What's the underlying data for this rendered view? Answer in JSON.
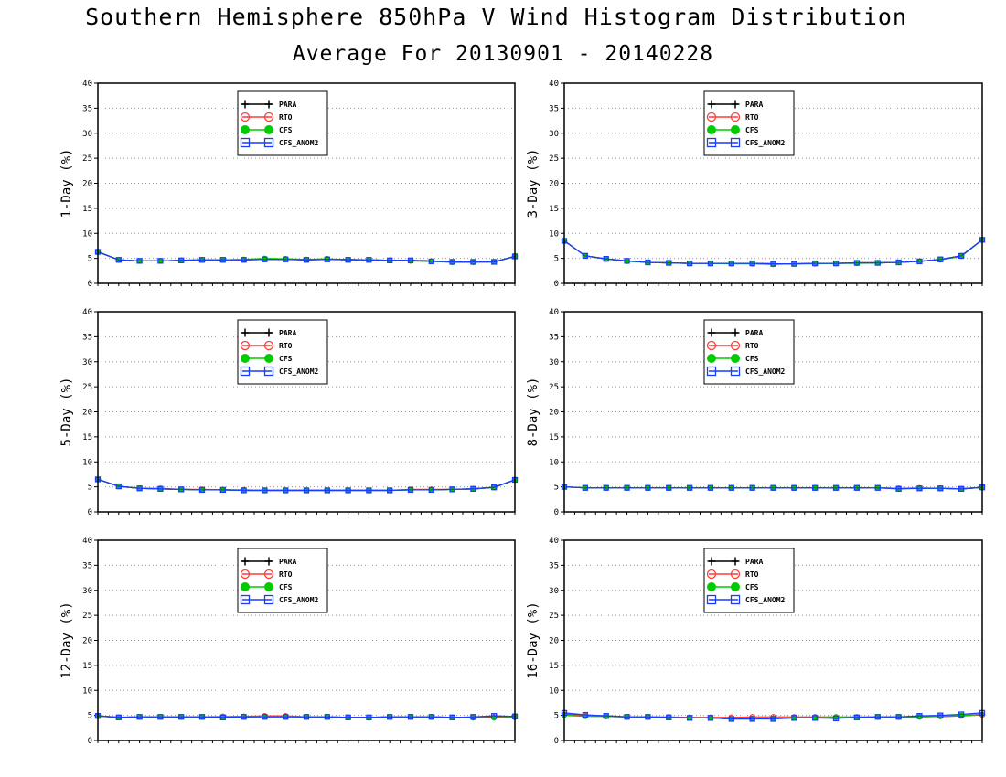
{
  "title": "Southern Hemisphere 850hPa V Wind Histogram Distribution",
  "subtitle": "Average For 20130901 - 20140228",
  "colors": {
    "PARA": "#000000",
    "RTO": "#ff3b3b",
    "CFS": "#00cc00",
    "CFS_ANOM2": "#1a3cff"
  },
  "chart_data": [
    {
      "type": "line",
      "ylabel": "1-Day (%)",
      "ylim": [
        0,
        40
      ],
      "yticks": [
        "0",
        "5",
        "10",
        "15",
        "20",
        "25",
        "30",
        "35",
        "40"
      ],
      "grid": true,
      "legend": "top-center",
      "series": [
        {
          "name": "PARA",
          "values": [
            6.3,
            4.7,
            4.5,
            4.5,
            4.6,
            4.7,
            4.7,
            4.7,
            4.8,
            4.8,
            4.7,
            4.8,
            4.8,
            4.7,
            4.6,
            4.6,
            4.5,
            4.3,
            4.3,
            4.3,
            5.4
          ]
        },
        {
          "name": "RTO",
          "values": [
            6.3,
            4.7,
            4.5,
            4.5,
            4.6,
            4.7,
            4.7,
            4.7,
            4.9,
            4.9,
            4.7,
            4.9,
            4.7,
            4.7,
            4.6,
            4.5,
            4.4,
            4.3,
            4.3,
            4.3,
            5.4
          ]
        },
        {
          "name": "CFS",
          "values": [
            6.3,
            4.7,
            4.5,
            4.5,
            4.6,
            4.7,
            4.7,
            4.8,
            5.0,
            4.9,
            4.8,
            4.9,
            4.7,
            4.7,
            4.6,
            4.5,
            4.4,
            4.2,
            4.2,
            4.3,
            5.4
          ]
        },
        {
          "name": "CFS_ANOM2",
          "values": [
            6.3,
            4.7,
            4.5,
            4.5,
            4.6,
            4.7,
            4.7,
            4.7,
            4.8,
            4.8,
            4.7,
            4.8,
            4.7,
            4.7,
            4.6,
            4.6,
            4.4,
            4.3,
            4.3,
            4.3,
            5.4
          ]
        }
      ]
    },
    {
      "type": "line",
      "ylabel": "3-Day (%)",
      "ylim": [
        0,
        40
      ],
      "yticks": [
        "0",
        "5",
        "10",
        "15",
        "20",
        "25",
        "30",
        "35",
        "40"
      ],
      "grid": true,
      "legend": "top-center",
      "series": [
        {
          "name": "PARA",
          "values": [
            8.5,
            5.5,
            4.9,
            4.5,
            4.2,
            4.1,
            4.0,
            4.0,
            4.0,
            4.0,
            3.9,
            3.9,
            4.0,
            4.0,
            4.1,
            4.1,
            4.2,
            4.4,
            4.8,
            5.5,
            8.7
          ]
        },
        {
          "name": "RTO",
          "values": [
            8.5,
            5.5,
            4.9,
            4.5,
            4.2,
            4.1,
            4.0,
            4.0,
            4.0,
            4.0,
            3.9,
            3.9,
            4.0,
            4.0,
            4.1,
            4.1,
            4.2,
            4.4,
            4.8,
            5.5,
            8.7
          ]
        },
        {
          "name": "CFS",
          "values": [
            8.5,
            5.5,
            4.9,
            4.4,
            4.2,
            4.1,
            4.0,
            4.0,
            3.9,
            3.9,
            3.8,
            3.9,
            3.9,
            4.0,
            4.0,
            4.1,
            4.2,
            4.4,
            4.7,
            5.4,
            8.7
          ]
        },
        {
          "name": "CFS_ANOM2",
          "values": [
            8.5,
            5.5,
            4.9,
            4.5,
            4.2,
            4.1,
            4.0,
            4.0,
            4.0,
            4.0,
            3.9,
            3.9,
            4.0,
            4.0,
            4.1,
            4.1,
            4.2,
            4.4,
            4.8,
            5.5,
            8.7
          ]
        }
      ]
    },
    {
      "type": "line",
      "ylabel": "5-Day (%)",
      "ylim": [
        0,
        40
      ],
      "yticks": [
        "0",
        "5",
        "10",
        "15",
        "20",
        "25",
        "30",
        "35",
        "40"
      ],
      "grid": true,
      "legend": "top-center",
      "series": [
        {
          "name": "PARA",
          "values": [
            6.5,
            5.1,
            4.7,
            4.6,
            4.5,
            4.4,
            4.4,
            4.3,
            4.3,
            4.3,
            4.3,
            4.3,
            4.3,
            4.3,
            4.3,
            4.4,
            4.4,
            4.5,
            4.6,
            4.9,
            6.4
          ]
        },
        {
          "name": "RTO",
          "values": [
            6.5,
            5.1,
            4.7,
            4.7,
            4.5,
            4.5,
            4.4,
            4.4,
            4.3,
            4.3,
            4.3,
            4.3,
            4.3,
            4.3,
            4.3,
            4.5,
            4.5,
            4.5,
            4.6,
            4.9,
            6.4
          ]
        },
        {
          "name": "CFS",
          "values": [
            6.5,
            5.1,
            4.7,
            4.6,
            4.5,
            4.4,
            4.4,
            4.3,
            4.3,
            4.3,
            4.3,
            4.3,
            4.3,
            4.3,
            4.3,
            4.4,
            4.4,
            4.5,
            4.6,
            4.9,
            6.4
          ]
        },
        {
          "name": "CFS_ANOM2",
          "values": [
            6.5,
            5.1,
            4.7,
            4.6,
            4.5,
            4.4,
            4.4,
            4.3,
            4.3,
            4.3,
            4.3,
            4.3,
            4.3,
            4.3,
            4.3,
            4.4,
            4.4,
            4.5,
            4.6,
            4.9,
            6.4
          ]
        }
      ]
    },
    {
      "type": "line",
      "ylabel": "8-Day (%)",
      "ylim": [
        0,
        40
      ],
      "yticks": [
        "0",
        "5",
        "10",
        "15",
        "20",
        "25",
        "30",
        "35",
        "40"
      ],
      "grid": true,
      "legend": "top-center",
      "series": [
        {
          "name": "PARA",
          "values": [
            5.0,
            4.8,
            4.8,
            4.8,
            4.8,
            4.8,
            4.8,
            4.8,
            4.8,
            4.8,
            4.8,
            4.8,
            4.8,
            4.8,
            4.8,
            4.8,
            4.7,
            4.7,
            4.7,
            4.6,
            4.9
          ]
        },
        {
          "name": "RTO",
          "values": [
            5.0,
            4.8,
            4.8,
            4.8,
            4.8,
            4.8,
            4.8,
            4.8,
            4.8,
            4.8,
            4.8,
            4.8,
            4.8,
            4.8,
            4.8,
            4.8,
            4.7,
            4.8,
            4.7,
            4.6,
            4.9
          ]
        },
        {
          "name": "CFS",
          "values": [
            5.0,
            4.8,
            4.8,
            4.8,
            4.8,
            4.8,
            4.8,
            4.8,
            4.8,
            4.8,
            4.8,
            4.8,
            4.8,
            4.8,
            4.8,
            4.8,
            4.7,
            4.7,
            4.7,
            4.6,
            4.9
          ]
        },
        {
          "name": "CFS_ANOM2",
          "values": [
            5.0,
            4.8,
            4.8,
            4.8,
            4.8,
            4.8,
            4.8,
            4.8,
            4.8,
            4.8,
            4.8,
            4.8,
            4.8,
            4.8,
            4.8,
            4.8,
            4.6,
            4.7,
            4.7,
            4.6,
            4.9
          ]
        }
      ]
    },
    {
      "type": "line",
      "ylabel": "12-Day (%)",
      "ylim": [
        0,
        40
      ],
      "yticks": [
        "0",
        "5",
        "10",
        "15",
        "20",
        "25",
        "30",
        "35",
        "40"
      ],
      "grid": true,
      "legend": "top-center",
      "series": [
        {
          "name": "PARA",
          "values": [
            4.9,
            4.6,
            4.7,
            4.7,
            4.7,
            4.7,
            4.6,
            4.7,
            4.8,
            4.8,
            4.7,
            4.7,
            4.6,
            4.6,
            4.7,
            4.7,
            4.7,
            4.6,
            4.6,
            4.8,
            4.7
          ]
        },
        {
          "name": "RTO",
          "values": [
            4.9,
            4.6,
            4.7,
            4.7,
            4.7,
            4.7,
            4.8,
            4.8,
            4.9,
            4.9,
            4.7,
            4.7,
            4.6,
            4.6,
            4.7,
            4.7,
            4.7,
            4.6,
            4.6,
            4.6,
            4.7
          ]
        },
        {
          "name": "CFS",
          "values": [
            4.9,
            4.6,
            4.7,
            4.7,
            4.7,
            4.7,
            4.7,
            4.7,
            4.8,
            4.8,
            4.7,
            4.7,
            4.6,
            4.5,
            4.7,
            4.7,
            4.7,
            4.6,
            4.5,
            4.5,
            4.6
          ]
        },
        {
          "name": "CFS_ANOM2",
          "values": [
            4.9,
            4.6,
            4.7,
            4.7,
            4.7,
            4.7,
            4.6,
            4.7,
            4.7,
            4.7,
            4.7,
            4.7,
            4.6,
            4.6,
            4.7,
            4.7,
            4.7,
            4.6,
            4.7,
            4.9,
            4.8
          ]
        }
      ]
    },
    {
      "type": "line",
      "ylabel": "16-Day (%)",
      "ylim": [
        0,
        40
      ],
      "yticks": [
        "0",
        "5",
        "10",
        "15",
        "20",
        "25",
        "30",
        "35",
        "40"
      ],
      "grid": true,
      "legend": "top-center",
      "series": [
        {
          "name": "PARA",
          "values": [
            5.2,
            5.0,
            4.9,
            4.7,
            4.7,
            4.6,
            4.5,
            4.5,
            4.3,
            4.3,
            4.4,
            4.5,
            4.5,
            4.5,
            4.6,
            4.7,
            4.7,
            4.8,
            4.8,
            4.9,
            5.2
          ]
        },
        {
          "name": "RTO",
          "values": [
            5.2,
            4.9,
            4.8,
            4.7,
            4.7,
            4.7,
            4.6,
            4.6,
            4.6,
            4.7,
            4.7,
            4.7,
            4.7,
            4.7,
            4.7,
            4.7,
            4.7,
            4.7,
            4.8,
            4.9,
            5.1
          ]
        },
        {
          "name": "CFS",
          "values": [
            5.0,
            4.8,
            4.8,
            4.7,
            4.7,
            4.6,
            4.5,
            4.5,
            4.3,
            4.4,
            4.4,
            4.5,
            4.5,
            4.6,
            4.6,
            4.7,
            4.7,
            4.7,
            4.8,
            5.0,
            5.2
          ]
        },
        {
          "name": "CFS_ANOM2",
          "values": [
            5.5,
            5.1,
            4.9,
            4.7,
            4.7,
            4.6,
            4.5,
            4.5,
            4.3,
            4.3,
            4.3,
            4.5,
            4.5,
            4.4,
            4.6,
            4.7,
            4.7,
            4.9,
            5.0,
            5.2,
            5.5
          ]
        }
      ]
    }
  ]
}
